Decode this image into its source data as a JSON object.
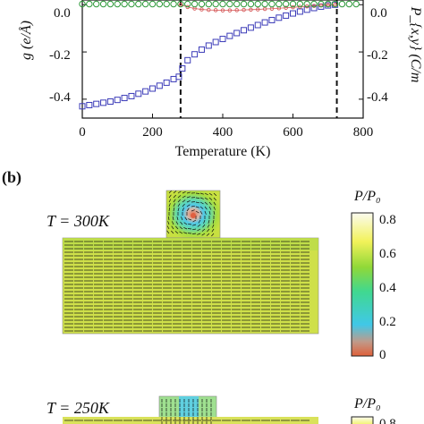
{
  "chart_data": [
    {
      "type": "scatter",
      "panel": "",
      "xlabel": "Temperature (K)",
      "ylabel_left": "g (e/Å)",
      "ylabel_right": "P_{x,y} (C/m",
      "xlim": [
        0,
        800
      ],
      "ylim": [
        -0.48,
        0.02
      ],
      "x_ticks": [
        "0",
        "200",
        "400",
        "600",
        "800"
      ],
      "y_ticks_left": [
        "0.0",
        "-0.2",
        "-0.4"
      ],
      "y_ticks_right": [
        "0.0",
        "-0.2",
        "-0.4"
      ],
      "vlines": [
        280,
        725
      ],
      "colors": {
        "series_g": "#3b3bb8",
        "series_px": "#d65a5a",
        "series_py": "#2e9a3a"
      },
      "series": [
        {
          "marker": "square",
          "x": [
            0,
            20,
            40,
            60,
            80,
            100,
            120,
            140,
            160,
            180,
            200,
            220,
            240,
            260,
            275,
            285,
            300,
            320,
            340,
            360,
            380,
            400,
            420,
            440,
            460,
            480,
            500,
            520,
            540,
            560,
            580,
            600,
            620,
            640,
            660,
            680,
            700,
            720
          ],
          "values": [
            -0.43,
            -0.425,
            -0.42,
            -0.415,
            -0.41,
            -0.403,
            -0.395,
            -0.387,
            -0.377,
            -0.367,
            -0.355,
            -0.343,
            -0.33,
            -0.315,
            -0.305,
            -0.27,
            -0.235,
            -0.21,
            -0.19,
            -0.173,
            -0.158,
            -0.145,
            -0.132,
            -0.12,
            -0.108,
            -0.097,
            -0.086,
            -0.075,
            -0.065,
            -0.055,
            -0.046,
            -0.037,
            -0.029,
            -0.021,
            -0.014,
            -0.008,
            -0.003,
            0.0
          ]
        },
        {
          "marker": "circle",
          "x": [
            280,
            300,
            320,
            340,
            360,
            380,
            400,
            420,
            440,
            460,
            480,
            500,
            520,
            540,
            560,
            580,
            600,
            620,
            640,
            660,
            680,
            700,
            720
          ],
          "values": [
            0.0,
            -0.01,
            -0.016,
            -0.02,
            -0.022,
            -0.023,
            -0.024,
            -0.024,
            -0.023,
            -0.022,
            -0.021,
            -0.02,
            -0.018,
            -0.017,
            -0.015,
            -0.013,
            -0.011,
            -0.009,
            -0.007,
            -0.005,
            -0.003,
            -0.001,
            0.0
          ]
        },
        {
          "marker": "diamond",
          "x": [
            0,
            20,
            40,
            60,
            80,
            100,
            120,
            140,
            160,
            180,
            200,
            220,
            240,
            260,
            280,
            300,
            320,
            340,
            360,
            380,
            400,
            420,
            440,
            460,
            480,
            500,
            520,
            540,
            560,
            580,
            600,
            620,
            640,
            660,
            680,
            700,
            720,
            740,
            760,
            780
          ],
          "values": [
            0.003,
            0.003,
            0.003,
            0.003,
            0.003,
            0.003,
            0.003,
            0.003,
            0.003,
            0.003,
            0.003,
            0.003,
            0.003,
            0.003,
            0.003,
            0.003,
            0.003,
            0.003,
            0.003,
            0.003,
            0.003,
            0.003,
            0.003,
            0.003,
            0.003,
            0.003,
            0.003,
            0.003,
            0.003,
            0.003,
            0.003,
            0.003,
            0.003,
            0.003,
            0.003,
            0.003,
            0.003,
            0.003,
            0.003,
            0.003
          ]
        }
      ]
    },
    {
      "type": "heatmap",
      "panel": "(b)",
      "maps": [
        {
          "temperature_label": "T = 300K",
          "colorbar_title": "P/P₀",
          "colorbar_ticks": [
            "0.8",
            "0.6",
            "0.4",
            "0.2",
            "0"
          ],
          "vrange": [
            0,
            0.85
          ]
        },
        {
          "temperature_label": "T = 250K",
          "colorbar_title": "P/P₀",
          "colorbar_ticks": [
            "0.8"
          ],
          "vrange": [
            0,
            0.85
          ]
        }
      ]
    }
  ]
}
